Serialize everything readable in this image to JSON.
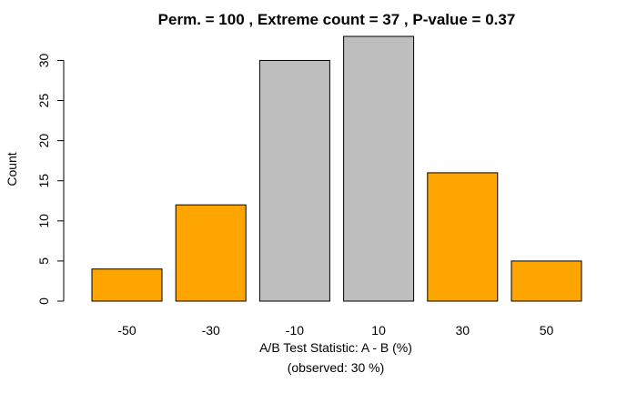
{
  "chart_data": {
    "type": "bar",
    "title": "Perm. = 100 , Extreme count = 37 , P-value = 0.37",
    "xlabel": "A/B Test Statistic: A - B (%)",
    "xlabel_sub": "(observed: 30 %)",
    "ylabel": "Count",
    "categories": [
      "-50",
      "-30",
      "-10",
      "10",
      "30",
      "50"
    ],
    "values": [
      4,
      12,
      30,
      33,
      16,
      5
    ],
    "extreme": [
      true,
      true,
      false,
      false,
      true,
      true
    ],
    "ylim": [
      0,
      33
    ],
    "yticks": [
      "0",
      "5",
      "10",
      "15",
      "20",
      "25",
      "30"
    ],
    "grid": false,
    "colors": {
      "extreme": "#FFA500",
      "normal": "#BEBEBE",
      "border": "#000000"
    }
  }
}
